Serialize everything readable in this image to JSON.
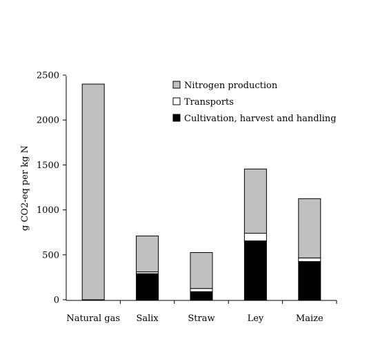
{
  "chart_data": {
    "type": "bar",
    "stacked": true,
    "ylabel": "g CO2-eq per kg N",
    "ylim": [
      0,
      2500
    ],
    "yticks": [
      0,
      500,
      1000,
      1500,
      2000,
      2500
    ],
    "categories": [
      "Natural gas",
      "Salix",
      "Straw",
      "Ley",
      "Maize"
    ],
    "series": [
      {
        "name": "Cultivation, harvest and handling",
        "color": "#000000",
        "values": [
          0,
          290,
          90,
          655,
          425
        ]
      },
      {
        "name": "Transports",
        "color": "#ffffff",
        "values": [
          0,
          20,
          35,
          85,
          40
        ]
      },
      {
        "name": "Nitrogen production",
        "color": "#c0c0c0",
        "values": [
          2400,
          400,
          400,
          715,
          660
        ]
      }
    ],
    "legend": {
      "placement": "top-right",
      "order": [
        "Nitrogen production",
        "Transports",
        "Cultivation, harvest and handling"
      ]
    },
    "grid": false
  }
}
